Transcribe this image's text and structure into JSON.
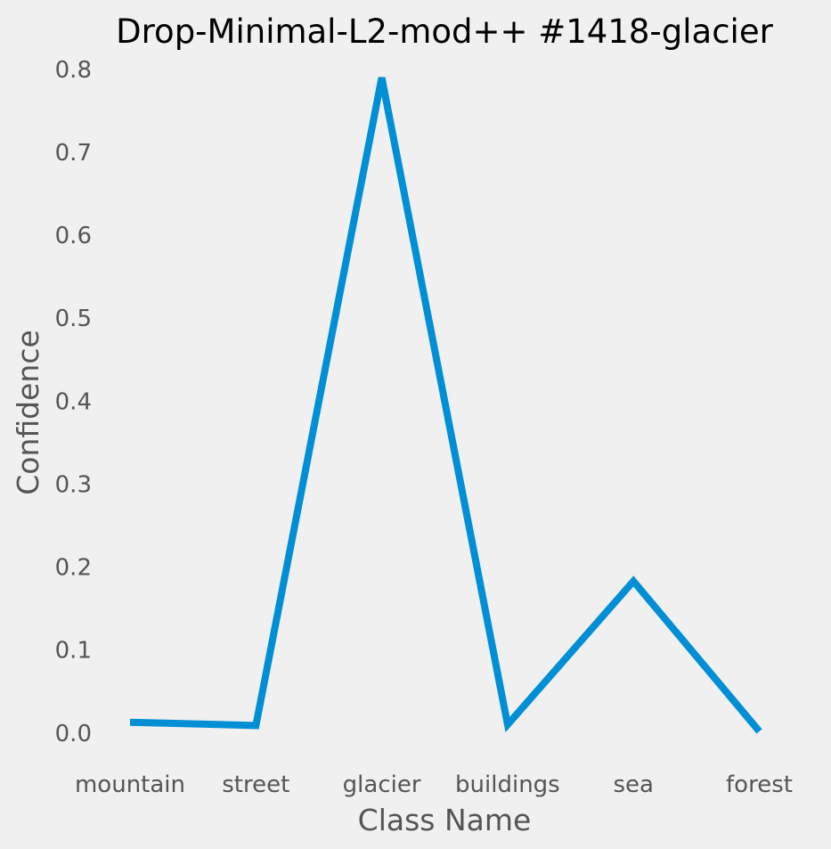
{
  "chart_data": {
    "type": "line",
    "title": "Drop-Minimal-L2-mod++ #1418-glacier",
    "xlabel": "Class Name",
    "ylabel": "Confidence",
    "categories": [
      "mountain",
      "street",
      "glacier",
      "buildings",
      "sea",
      "forest"
    ],
    "series": [
      {
        "values": [
          0.013,
          0.009,
          0.79,
          0.01,
          0.183,
          0.002
        ]
      }
    ],
    "ylim": [
      -0.04,
      0.83
    ],
    "yticks": [
      "0.0",
      "0.1",
      "0.2",
      "0.3",
      "0.4",
      "0.5",
      "0.6",
      "0.7",
      "0.8"
    ],
    "grid": false,
    "legend": "none",
    "line_color": "#008fd5",
    "background": "#f0f0f0"
  }
}
